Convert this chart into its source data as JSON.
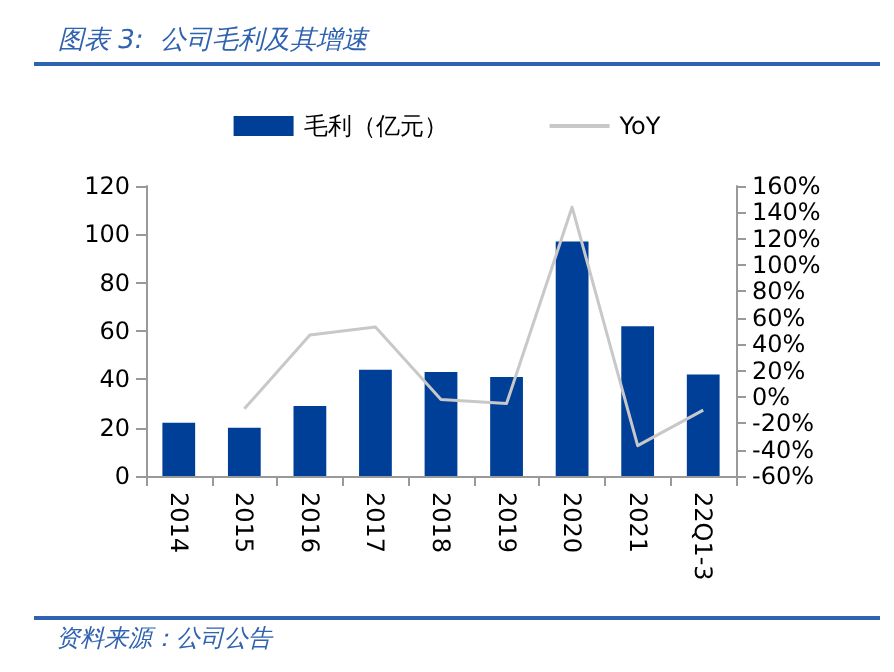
{
  "chart_data": {
    "type": "bar",
    "title": "图表 3:  公司毛利及其增速",
    "categories": [
      "2014",
      "2015",
      "2016",
      "2017",
      "2018",
      "2019",
      "2020",
      "2021",
      "22Q1-3"
    ],
    "series": [
      {
        "name": "毛利（亿元）",
        "color": "#003f98",
        "values": [
          22,
          20,
          29,
          44,
          43,
          41,
          97,
          62,
          42
        ]
      },
      {
        "name": "YoY",
        "type": "line",
        "axis": "y2",
        "color": "#c8c8c8",
        "values": [
          null,
          -9,
          47,
          53,
          -2,
          -5,
          144,
          -37,
          -10
        ]
      }
    ],
    "ylim": [
      0,
      120
    ],
    "yticks": [
      0,
      20,
      40,
      60,
      80,
      100,
      120
    ],
    "y2lim": [
      -60,
      160
    ],
    "y2ticks": [
      {
        "value": -60,
        "label": "-60%"
      },
      {
        "value": -40,
        "label": "-40%"
      },
      {
        "value": -20,
        "label": "-20%"
      },
      {
        "value": 0,
        "label": "0%"
      },
      {
        "value": 20,
        "label": "20%"
      },
      {
        "value": 40,
        "label": "40%"
      },
      {
        "value": 60,
        "label": "60%"
      },
      {
        "value": 80,
        "label": "80%"
      },
      {
        "value": 100,
        "label": "100%"
      },
      {
        "value": 120,
        "label": "120%"
      },
      {
        "value": 140,
        "label": "140%"
      },
      {
        "value": 160,
        "label": "160%"
      }
    ],
    "grid": false,
    "legend": "top",
    "marker": "none",
    "annotations": [
      "资料来源：公司公告"
    ]
  }
}
